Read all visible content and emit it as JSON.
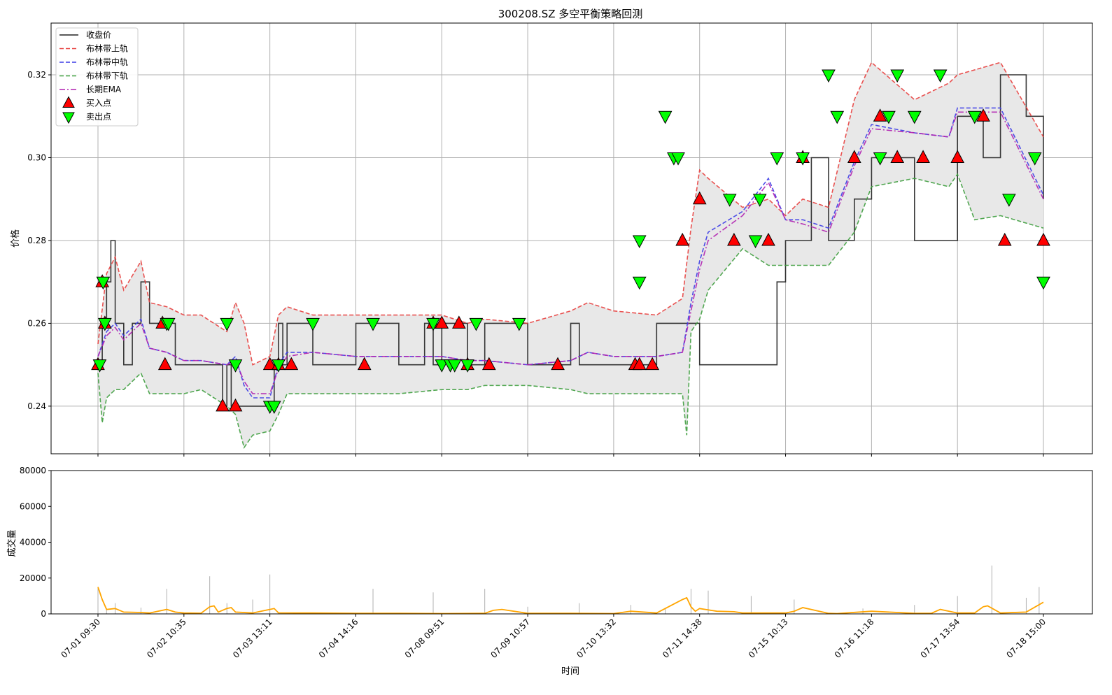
{
  "chart_data": [
    {
      "type": "line",
      "title": "300208.SZ 多空平衡策略回测",
      "xlabel": "",
      "ylabel": "价格",
      "ylim": [
        0.2285,
        0.3325
      ],
      "yticks": [
        0.24,
        0.26,
        0.28,
        0.3,
        0.32
      ],
      "ytick_labels": [
        "0.24",
        "0.26",
        "0.28",
        "0.30",
        "0.32"
      ],
      "grid": true,
      "legend_position": "top-left",
      "legend": [
        "收盘价",
        "布林带上轨",
        "布林带中轨",
        "布林带下轨",
        "长期EMA",
        "买入点",
        "卖出点"
      ],
      "colors": {
        "close": "#222222",
        "upper": "#e8403f",
        "middle": "#3c3ce6",
        "lower": "#3f9f3f",
        "ema": "#b020b0",
        "buy": "#ff0000",
        "sell": "#00ff00",
        "band_fill": "#e8e8e8"
      },
      "x_index_range": [
        0,
        11
      ],
      "series": [
        {
          "name": "收盘价",
          "x": [
            0,
            0.05,
            0.1,
            0.15,
            0.2,
            0.3,
            0.4,
            0.5,
            0.6,
            0.7,
            0.8,
            0.9,
            1.0,
            1.2,
            1.4,
            1.45,
            1.5,
            1.55,
            1.6,
            1.8,
            2.0,
            2.05,
            2.1,
            2.15,
            2.2,
            2.5,
            3.0,
            3.5,
            3.8,
            3.9,
            3.95,
            4.0,
            4.3,
            4.5,
            5.0,
            5.5,
            5.6,
            6.0,
            6.5,
            7.0,
            7.5,
            7.8,
            7.9,
            8.0,
            8.3,
            8.5,
            8.8,
            9.0,
            9.5,
            10.0,
            10.3,
            10.5,
            10.8,
            11.0
          ],
          "values": [
            0.25,
            0.26,
            0.27,
            0.28,
            0.26,
            0.25,
            0.26,
            0.27,
            0.26,
            0.26,
            0.26,
            0.25,
            0.25,
            0.25,
            0.25,
            0.24,
            0.25,
            0.24,
            0.24,
            0.24,
            0.24,
            0.25,
            0.26,
            0.25,
            0.26,
            0.25,
            0.26,
            0.25,
            0.26,
            0.25,
            0.25,
            0.26,
            0.25,
            0.26,
            0.25,
            0.26,
            0.25,
            0.25,
            0.26,
            0.25,
            0.25,
            0.25,
            0.27,
            0.28,
            0.3,
            0.28,
            0.29,
            0.3,
            0.28,
            0.31,
            0.3,
            0.32,
            0.31,
            0.29
          ]
        },
        {
          "name": "布林带上轨",
          "x": [
            0,
            0.1,
            0.2,
            0.3,
            0.5,
            0.6,
            0.8,
            1.0,
            1.2,
            1.5,
            1.6,
            1.7,
            1.8,
            2.0,
            2.1,
            2.2,
            2.5,
            3.0,
            3.5,
            4.0,
            4.3,
            4.5,
            5.0,
            5.5,
            5.7,
            6.0,
            6.5,
            6.8,
            6.9,
            7.0,
            7.1,
            7.5,
            7.8,
            8.0,
            8.2,
            8.5,
            8.8,
            9.0,
            9.5,
            9.9,
            10.0,
            10.5,
            11.0
          ],
          "values": [
            0.255,
            0.272,
            0.276,
            0.268,
            0.275,
            0.265,
            0.264,
            0.262,
            0.262,
            0.258,
            0.265,
            0.26,
            0.25,
            0.252,
            0.262,
            0.264,
            0.262,
            0.262,
            0.262,
            0.262,
            0.26,
            0.261,
            0.26,
            0.263,
            0.265,
            0.263,
            0.262,
            0.266,
            0.283,
            0.297,
            0.295,
            0.288,
            0.29,
            0.286,
            0.29,
            0.288,
            0.314,
            0.323,
            0.314,
            0.318,
            0.32,
            0.323,
            0.305
          ]
        },
        {
          "name": "布林带中轨",
          "x": [
            0,
            0.1,
            0.2,
            0.3,
            0.5,
            0.6,
            0.8,
            1.0,
            1.2,
            1.5,
            1.6,
            1.7,
            1.8,
            2.0,
            2.1,
            2.2,
            2.5,
            3.0,
            3.5,
            4.0,
            4.3,
            4.5,
            5.0,
            5.5,
            5.7,
            6.0,
            6.5,
            6.8,
            6.9,
            7.0,
            7.1,
            7.5,
            7.8,
            8.0,
            8.2,
            8.5,
            8.8,
            9.0,
            9.5,
            9.9,
            10.0,
            10.5,
            11.0
          ],
          "values": [
            0.252,
            0.258,
            0.26,
            0.257,
            0.261,
            0.254,
            0.253,
            0.251,
            0.251,
            0.25,
            0.252,
            0.245,
            0.242,
            0.242,
            0.25,
            0.253,
            0.253,
            0.252,
            0.252,
            0.252,
            0.251,
            0.251,
            0.25,
            0.251,
            0.253,
            0.252,
            0.252,
            0.253,
            0.265,
            0.275,
            0.282,
            0.287,
            0.295,
            0.285,
            0.285,
            0.283,
            0.299,
            0.308,
            0.306,
            0.305,
            0.312,
            0.312,
            0.291
          ]
        },
        {
          "name": "布林带下轨",
          "x": [
            0,
            0.05,
            0.1,
            0.2,
            0.3,
            0.5,
            0.6,
            0.8,
            1.0,
            1.2,
            1.5,
            1.6,
            1.7,
            1.8,
            2.0,
            2.1,
            2.2,
            2.5,
            3.0,
            3.5,
            4.0,
            4.3,
            4.5,
            5.0,
            5.5,
            5.7,
            6.0,
            6.5,
            6.8,
            6.85,
            6.9,
            7.0,
            7.1,
            7.5,
            7.8,
            8.0,
            8.2,
            8.5,
            8.8,
            9.0,
            9.5,
            9.9,
            10.0,
            10.2,
            10.5,
            11.0
          ],
          "values": [
            0.248,
            0.236,
            0.242,
            0.244,
            0.244,
            0.248,
            0.243,
            0.243,
            0.243,
            0.244,
            0.24,
            0.238,
            0.23,
            0.233,
            0.234,
            0.238,
            0.243,
            0.243,
            0.243,
            0.243,
            0.244,
            0.244,
            0.245,
            0.245,
            0.244,
            0.243,
            0.243,
            0.243,
            0.243,
            0.233,
            0.258,
            0.261,
            0.268,
            0.278,
            0.274,
            0.274,
            0.274,
            0.274,
            0.282,
            0.293,
            0.295,
            0.293,
            0.296,
            0.285,
            0.286,
            0.283
          ]
        },
        {
          "name": "长期EMA",
          "x": [
            0,
            0.1,
            0.2,
            0.3,
            0.5,
            0.6,
            0.8,
            1.0,
            1.2,
            1.5,
            1.6,
            1.7,
            1.8,
            2.0,
            2.1,
            2.2,
            2.5,
            3.0,
            3.5,
            4.0,
            4.3,
            4.5,
            5.0,
            5.5,
            5.7,
            6.0,
            6.5,
            6.8,
            6.9,
            7.0,
            7.1,
            7.5,
            7.8,
            8.0,
            8.2,
            8.5,
            8.8,
            9.0,
            9.5,
            9.9,
            10.0,
            10.5,
            11.0
          ],
          "values": [
            0.252,
            0.257,
            0.259,
            0.256,
            0.26,
            0.254,
            0.253,
            0.251,
            0.251,
            0.25,
            0.251,
            0.246,
            0.243,
            0.243,
            0.249,
            0.252,
            0.253,
            0.252,
            0.252,
            0.252,
            0.251,
            0.251,
            0.25,
            0.251,
            0.253,
            0.252,
            0.252,
            0.253,
            0.263,
            0.273,
            0.28,
            0.286,
            0.294,
            0.285,
            0.284,
            0.282,
            0.298,
            0.307,
            0.306,
            0.305,
            0.311,
            0.311,
            0.29
          ]
        }
      ],
      "buy_points": {
        "x": [
          0,
          0.05,
          0.08,
          0.75,
          0.78,
          1.45,
          1.6,
          2.0,
          2.1,
          2.25,
          3.1,
          3.9,
          4.0,
          4.2,
          4.3,
          4.55,
          5.35,
          6.25,
          6.3,
          6.45,
          6.8,
          7.0,
          7.4,
          7.8,
          8.2,
          8.8,
          9.1,
          9.3,
          9.6,
          10.0,
          10.3,
          10.55,
          11.0
        ],
        "values": [
          0.25,
          0.27,
          0.26,
          0.26,
          0.25,
          0.24,
          0.24,
          0.25,
          0.25,
          0.25,
          0.25,
          0.26,
          0.26,
          0.26,
          0.25,
          0.25,
          0.25,
          0.25,
          0.25,
          0.25,
          0.28,
          0.29,
          0.28,
          0.28,
          0.3,
          0.3,
          0.31,
          0.3,
          0.3,
          0.3,
          0.31,
          0.28,
          0.28
        ]
      },
      "sell_points": {
        "x": [
          0.02,
          0.06,
          0.08,
          0.8,
          0.82,
          1.5,
          1.6,
          2.0,
          2.05,
          2.1,
          2.5,
          3.2,
          3.9,
          4.0,
          4.1,
          4.15,
          4.3,
          4.4,
          4.9,
          6.3,
          6.3,
          6.6,
          6.7,
          6.75,
          7.35,
          7.65,
          7.7,
          7.9,
          8.2,
          8.5,
          8.6,
          9.1,
          9.2,
          9.3,
          9.5,
          9.8,
          10.2,
          10.6,
          10.9,
          11.0
        ],
        "values": [
          0.25,
          0.27,
          0.26,
          0.26,
          0.26,
          0.26,
          0.25,
          0.24,
          0.24,
          0.25,
          0.26,
          0.26,
          0.26,
          0.25,
          0.25,
          0.25,
          0.25,
          0.26,
          0.26,
          0.27,
          0.28,
          0.31,
          0.3,
          0.3,
          0.29,
          0.28,
          0.29,
          0.3,
          0.3,
          0.32,
          0.31,
          0.3,
          0.31,
          0.32,
          0.31,
          0.32,
          0.31,
          0.29,
          0.3,
          0.27
        ]
      }
    },
    {
      "type": "bar",
      "title": "",
      "xlabel": "时间",
      "ylabel": "成交量",
      "ylim": [
        0,
        80000
      ],
      "yticks": [
        0,
        20000,
        40000,
        60000,
        80000
      ],
      "ytick_labels": [
        "0",
        "20000",
        "40000",
        "60000",
        "80000"
      ],
      "xtick_labels": [
        "07-01 09:30",
        "07-02 10:35",
        "07-03 13:11",
        "07-04 14:16",
        "07-08 09:51",
        "07-09 10:57",
        "07-10 13:32",
        "07-11 14:38",
        "07-15 10:13",
        "07-16 11:18",
        "07-17 13:54",
        "07-18 15:00"
      ],
      "grid": false,
      "colors": {
        "volume_bar": "#b0b0b0",
        "volume_ma": "#ffa500"
      },
      "volume_spikes": {
        "x": [
          0.0,
          0.1,
          0.2,
          0.5,
          0.8,
          1.3,
          1.5,
          1.8,
          2.0,
          3.2,
          3.9,
          4.5,
          5.0,
          5.6,
          6.2,
          6.6,
          6.9,
          7.1,
          7.6,
          8.1,
          8.9,
          9.5,
          10.0,
          10.4,
          10.8,
          10.95
        ],
        "values": [
          15000,
          3000,
          6000,
          3500,
          14000,
          21000,
          6000,
          8000,
          22000,
          14000,
          12000,
          14000,
          4000,
          6000,
          5000,
          3000,
          14000,
          13000,
          10000,
          8000,
          3000,
          5000,
          10000,
          27000,
          9000,
          15000
        ]
      },
      "volume_ma": {
        "x": [
          0,
          0.05,
          0.1,
          0.2,
          0.3,
          0.5,
          0.6,
          0.8,
          0.9,
          1.0,
          1.2,
          1.3,
          1.35,
          1.4,
          1.5,
          1.55,
          1.6,
          1.8,
          2.0,
          2.05,
          2.1,
          2.5,
          3.0,
          3.5,
          4.0,
          4.5,
          4.6,
          4.7,
          5.0,
          5.5,
          6.0,
          6.2,
          6.5,
          6.8,
          6.85,
          6.9,
          6.95,
          7.0,
          7.2,
          7.4,
          7.5,
          8.0,
          8.1,
          8.2,
          8.5,
          8.6,
          9.0,
          9.5,
          9.7,
          9.8,
          10.0,
          10.2,
          10.3,
          10.35,
          10.5,
          10.8,
          11.0
        ],
        "values": [
          15000,
          8000,
          2500,
          3000,
          1000,
          800,
          500,
          2500,
          1000,
          500,
          400,
          4000,
          4500,
          1000,
          3000,
          3500,
          1000,
          500,
          2500,
          3000,
          600,
          500,
          300,
          300,
          200,
          300,
          2000,
          2500,
          300,
          300,
          200,
          1500,
          500,
          8000,
          9000,
          4000,
          1500,
          3000,
          1500,
          1200,
          500,
          500,
          1500,
          3500,
          300,
          200,
          1500,
          300,
          400,
          2500,
          500,
          500,
          4000,
          4500,
          500,
          1000,
          6500
        ]
      }
    }
  ]
}
